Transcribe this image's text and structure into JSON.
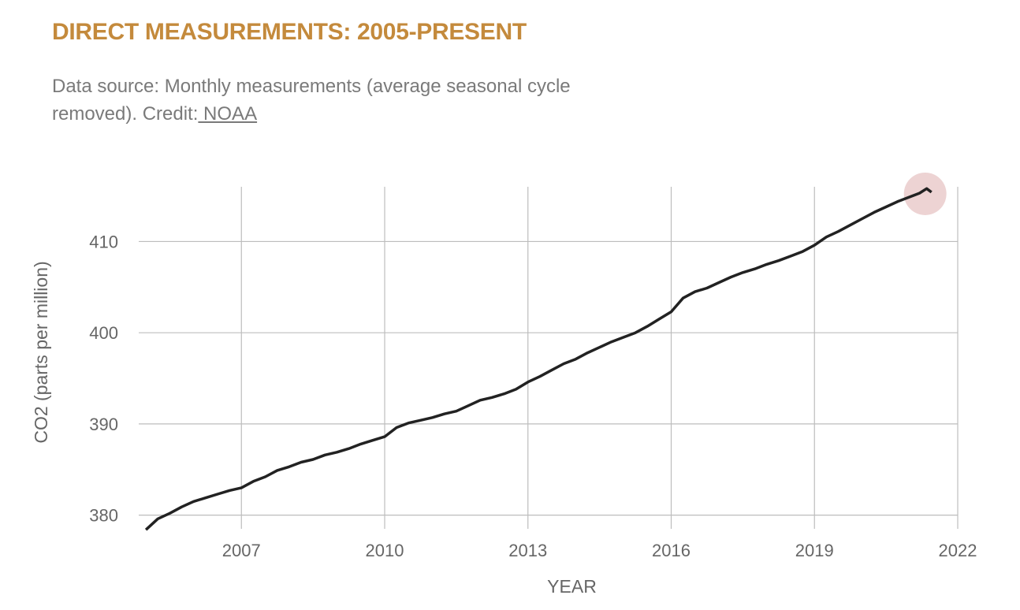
{
  "header": {
    "title": "DIRECT MEASUREMENTS: 2005-PRESENT",
    "source_text": "Data source: Monthly measurements (average seasonal cycle removed). Credit:",
    "credit_link": " NOAA"
  },
  "colors": {
    "title": "#c48a3c",
    "line": "#222222",
    "grid": "#bdbdbd",
    "highlight": "#e8c8c8"
  },
  "chart_data": {
    "type": "line",
    "xlabel": "YEAR",
    "ylabel": "CO2 (parts per million)",
    "xlim": [
      2004.85,
      2022.0
    ],
    "ylim": [
      378.5,
      416.0
    ],
    "x_ticks": [
      2007,
      2010,
      2013,
      2016,
      2019,
      2022
    ],
    "y_ticks": [
      380,
      390,
      400,
      410
    ],
    "grid": true,
    "highlight_last_point": true,
    "series": [
      {
        "x": [
          2005.0,
          2005.25,
          2005.5,
          2005.75,
          2006.0,
          2006.25,
          2006.5,
          2006.75,
          2007.0,
          2007.25,
          2007.5,
          2007.75,
          2008.0,
          2008.25,
          2008.5,
          2008.75,
          2009.0,
          2009.25,
          2009.5,
          2009.75,
          2010.0,
          2010.25,
          2010.5,
          2010.75,
          2011.0,
          2011.25,
          2011.5,
          2011.75,
          2012.0,
          2012.25,
          2012.5,
          2012.75,
          2013.0,
          2013.25,
          2013.5,
          2013.75,
          2014.0,
          2014.25,
          2014.5,
          2014.75,
          2015.0,
          2015.25,
          2015.5,
          2015.75,
          2016.0,
          2016.25,
          2016.5,
          2016.75,
          2017.0,
          2017.25,
          2017.5,
          2017.75,
          2018.0,
          2018.25,
          2018.5,
          2018.75,
          2019.0,
          2019.25,
          2019.5,
          2019.75,
          2020.0,
          2020.25,
          2020.5,
          2020.75,
          2021.0,
          2021.2,
          2021.35,
          2021.45
        ],
        "values": [
          378.4,
          379.6,
          380.2,
          380.9,
          381.5,
          381.9,
          382.3,
          382.7,
          383.0,
          383.7,
          384.2,
          384.9,
          385.3,
          385.8,
          386.1,
          386.6,
          386.9,
          387.3,
          387.8,
          388.2,
          388.6,
          389.6,
          390.1,
          390.4,
          390.7,
          391.1,
          391.4,
          392.0,
          392.6,
          392.9,
          393.3,
          393.8,
          394.6,
          395.2,
          395.9,
          396.6,
          397.1,
          397.8,
          398.4,
          399.0,
          399.5,
          400.0,
          400.7,
          401.5,
          402.3,
          403.8,
          404.5,
          404.9,
          405.5,
          406.1,
          406.6,
          407.0,
          407.5,
          407.9,
          408.4,
          408.9,
          409.6,
          410.5,
          411.1,
          411.8,
          412.5,
          413.2,
          413.8,
          414.4,
          414.9,
          415.3,
          415.8,
          415.4
        ]
      }
    ]
  }
}
